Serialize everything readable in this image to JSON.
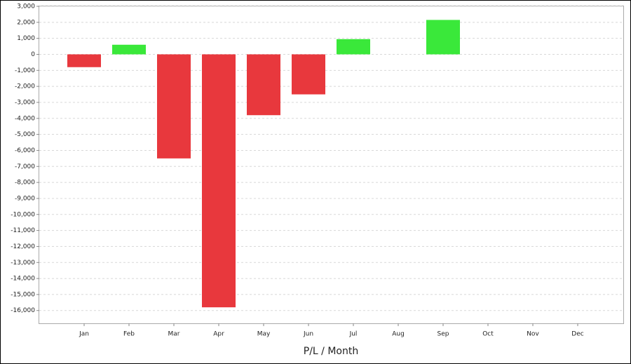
{
  "chart_data": {
    "type": "bar",
    "x_label": "P/L / Month",
    "categories": [
      "Jan",
      "Feb",
      "Mar",
      "Apr",
      "May",
      "Jun",
      "Jul",
      "Aug",
      "Sep",
      "Oct",
      "Nov",
      "Dec"
    ],
    "values": [
      -800,
      600,
      -6500,
      -15800,
      -3800,
      -2500,
      950,
      null,
      2150,
      null,
      null,
      null
    ],
    "positive_color": "#3ae83a",
    "negative_color": "#e8383d",
    "ylim": [
      -16800,
      3000
    ],
    "yticks": [
      {
        "value": 3000,
        "label": "3,000"
      },
      {
        "value": 2000,
        "label": "2,000"
      },
      {
        "value": 1000,
        "label": "1,000"
      },
      0,
      {
        "value": -1000,
        "label": "-1,000"
      },
      {
        "value": -2000,
        "label": "-2,000"
      },
      {
        "value": -3000,
        "label": "-3,000"
      },
      {
        "value": -4000,
        "label": "-4,000"
      },
      {
        "value": -5000,
        "label": "-5,000"
      },
      {
        "value": -6000,
        "label": "-6,000"
      },
      {
        "value": -7000,
        "label": "-7,000"
      },
      {
        "value": -8000,
        "label": "-8,000"
      },
      {
        "value": -9000,
        "label": "-9,000"
      },
      {
        "value": -10000,
        "label": "-10,000"
      },
      {
        "value": -11000,
        "label": "-11,000"
      },
      {
        "value": -12000,
        "label": "-12,000"
      },
      {
        "value": -13000,
        "label": "-13,000"
      },
      {
        "value": -14000,
        "label": "-14,000"
      },
      {
        "value": -15000,
        "label": "-15,000"
      },
      {
        "value": -16000,
        "label": "-16,000"
      }
    ],
    "grid": true
  }
}
